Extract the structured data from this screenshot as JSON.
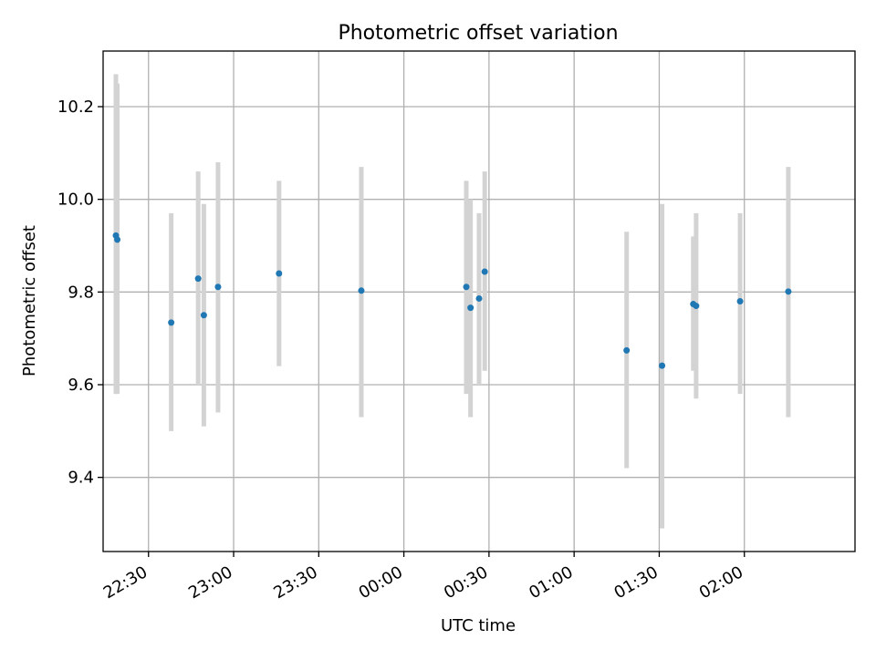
{
  "chart_data": {
    "type": "scatter",
    "title": "Photometric offset variation",
    "xlabel": "UTC time",
    "ylabel": "Photometric offset",
    "x_axis_kind": "time",
    "xlim": [
      "22:14",
      "02:39"
    ],
    "ylim": [
      9.24,
      10.32
    ],
    "x_ticks": [
      "22:30",
      "23:00",
      "23:30",
      "00:00",
      "00:30",
      "01:00",
      "01:30",
      "02:00"
    ],
    "y_ticks": [
      "9.4",
      "9.6",
      "9.8",
      "10.0",
      "10.2"
    ],
    "grid": true,
    "colors": {
      "point": "#1f77b4",
      "errorbar": "#d3d3d3",
      "grid": "#b0b0b0"
    },
    "series": [
      {
        "points": [
          {
            "x": "22:18:30",
            "y": 9.922,
            "yerr_low": 9.58,
            "yerr_high": 10.27
          },
          {
            "x": "22:19:00",
            "y": 9.913,
            "yerr_low": 9.58,
            "yerr_high": 10.25
          },
          {
            "x": "22:38:00",
            "y": 9.734,
            "yerr_low": 9.5,
            "yerr_high": 9.97
          },
          {
            "x": "22:47:30",
            "y": 9.829,
            "yerr_low": 9.6,
            "yerr_high": 10.06
          },
          {
            "x": "22:49:30",
            "y": 9.75,
            "yerr_low": 9.51,
            "yerr_high": 9.99
          },
          {
            "x": "22:54:30",
            "y": 9.811,
            "yerr_low": 9.54,
            "yerr_high": 10.08
          },
          {
            "x": "23:16:00",
            "y": 9.84,
            "yerr_low": 9.64,
            "yerr_high": 10.04
          },
          {
            "x": "23:45:00",
            "y": 9.803,
            "yerr_low": 9.53,
            "yerr_high": 10.07
          },
          {
            "x": "00:22:00",
            "y": 9.811,
            "yerr_low": 9.58,
            "yerr_high": 10.04
          },
          {
            "x": "00:23:30",
            "y": 9.766,
            "yerr_low": 9.53,
            "yerr_high": 10.0
          },
          {
            "x": "00:26:30",
            "y": 9.786,
            "yerr_low": 9.6,
            "yerr_high": 9.97
          },
          {
            "x": "00:28:30",
            "y": 9.844,
            "yerr_low": 9.63,
            "yerr_high": 10.06
          },
          {
            "x": "01:18:30",
            "y": 9.674,
            "yerr_low": 9.42,
            "yerr_high": 9.93
          },
          {
            "x": "01:31:00",
            "y": 9.641,
            "yerr_low": 9.29,
            "yerr_high": 9.99
          },
          {
            "x": "01:42:00",
            "y": 9.774,
            "yerr_low": 9.63,
            "yerr_high": 9.92
          },
          {
            "x": "01:43:00",
            "y": 9.77,
            "yerr_low": 9.57,
            "yerr_high": 9.97
          },
          {
            "x": "01:58:30",
            "y": 9.78,
            "yerr_low": 9.58,
            "yerr_high": 9.97
          },
          {
            "x": "02:15:30",
            "y": 9.801,
            "yerr_low": 9.53,
            "yerr_high": 10.07
          }
        ]
      }
    ]
  }
}
